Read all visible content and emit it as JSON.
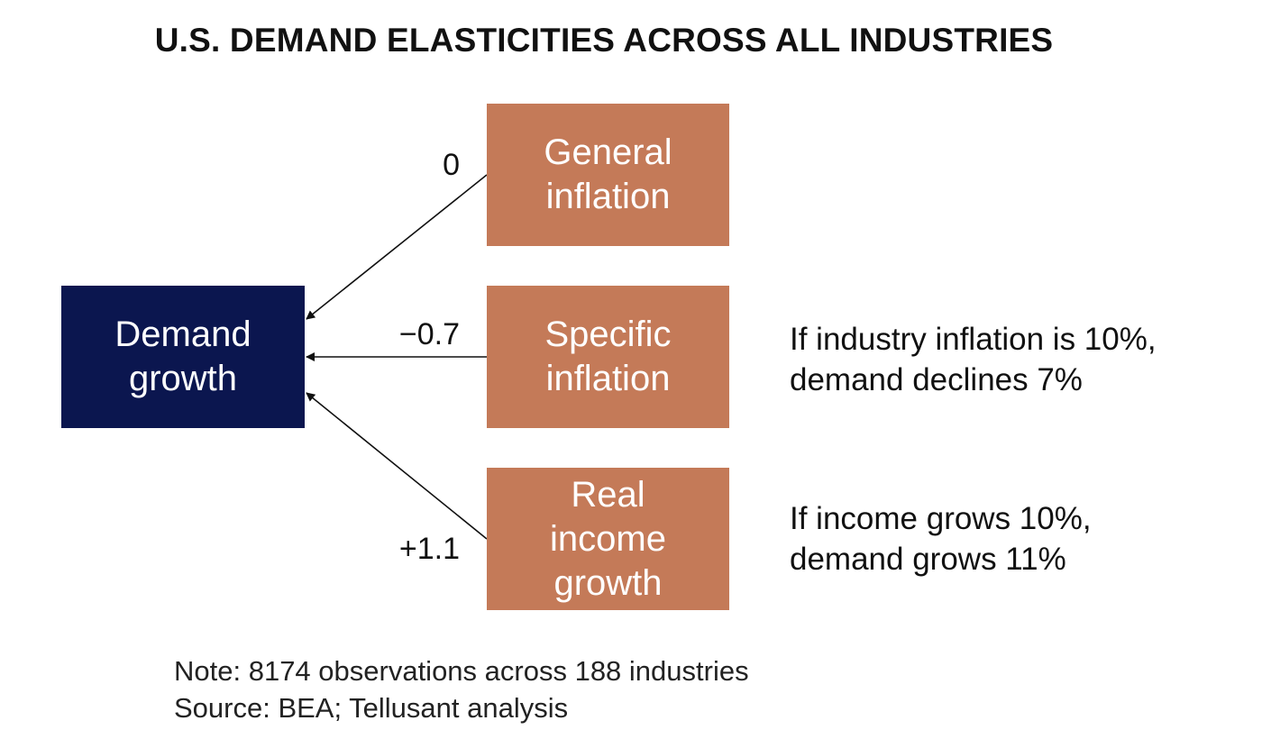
{
  "title": "U.S. DEMAND ELASTICITIES ACROSS ALL INDUSTRIES",
  "target": {
    "lines": [
      "Demand",
      "growth"
    ]
  },
  "drivers": [
    {
      "lines": [
        "General",
        "inflation"
      ],
      "coefficient": "0"
    },
    {
      "lines": [
        "Specific",
        "inflation"
      ],
      "coefficient": "−0.7"
    },
    {
      "lines": [
        "Real",
        "income",
        "growth"
      ],
      "coefficient": "+1.1"
    }
  ],
  "notes": {
    "specific": [
      "If industry inflation is 10%,",
      "demand declines 7%"
    ],
    "income": [
      "If income grows 10%,",
      "demand grows 11%"
    ]
  },
  "footer": {
    "note": "Note: 8174 observations across 188 industries",
    "source": "Source: BEA; Tellusant analysis"
  },
  "colors": {
    "target_box": "#0b164f",
    "driver_box": "#c47a58",
    "arrow": "#111111"
  }
}
